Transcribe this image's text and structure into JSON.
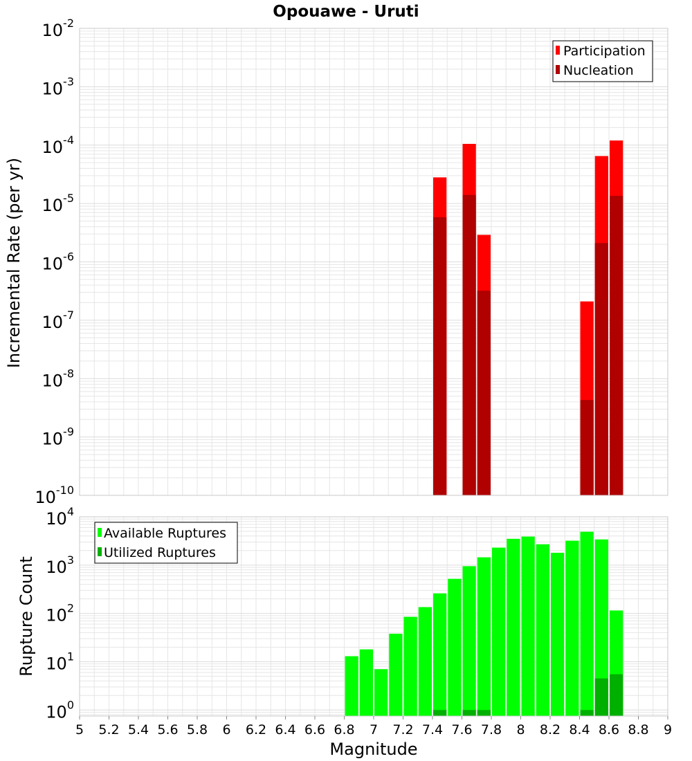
{
  "title": "Opouawe - Uruti",
  "colors": {
    "participation": "#ff0000",
    "nucleation": "#b00000",
    "available": "#00ff00",
    "utilized": "#00b000",
    "grid": "#e6e6e6",
    "frame": "#c8c8c8"
  },
  "chart_data": [
    {
      "type": "bar",
      "title": "Opouawe - Uruti",
      "xlabel": "",
      "ylabel": "Incremental Rate (per yr)",
      "yscale": "log",
      "ylim": [
        1e-10,
        0.01
      ],
      "xlim": [
        5,
        9
      ],
      "grid": true,
      "legend_position": "top-right",
      "y_ticks": [
        {
          "base": "10",
          "exp": "-10"
        },
        {
          "base": "10",
          "exp": "-9"
        },
        {
          "base": "10",
          "exp": "-8"
        },
        {
          "base": "10",
          "exp": "-7"
        },
        {
          "base": "10",
          "exp": "-6"
        },
        {
          "base": "10",
          "exp": "-5"
        },
        {
          "base": "10",
          "exp": "-4"
        },
        {
          "base": "10",
          "exp": "-3"
        },
        {
          "base": "10",
          "exp": "-2"
        }
      ],
      "series": [
        {
          "name": "Participation",
          "x": [
            7.45,
            7.65,
            7.75,
            8.45,
            8.55,
            8.65
          ],
          "values": [
            2.8e-05,
            0.000105,
            2.9e-06,
            2.1e-07,
            6.5e-05,
            0.00012
          ]
        },
        {
          "name": "Nucleation",
          "x": [
            7.45,
            7.65,
            7.75,
            8.45,
            8.55,
            8.65
          ],
          "values": [
            5.8e-06,
            1.4e-05,
            3.2e-07,
            4.3e-09,
            2.1e-06,
            1.35e-05
          ]
        }
      ]
    },
    {
      "type": "bar",
      "xlabel": "Magnitude",
      "ylabel": "Rupture Count",
      "yscale": "log",
      "ylim": [
        0.75,
        10000
      ],
      "xlim": [
        5,
        9
      ],
      "grid": true,
      "legend_position": "top-left",
      "x_ticks": [
        "5",
        "5.2",
        "5.4",
        "5.6",
        "5.8",
        "6",
        "6.2",
        "6.4",
        "6.6",
        "6.8",
        "7",
        "7.2",
        "7.4",
        "7.6",
        "7.8",
        "8",
        "8.2",
        "8.4",
        "8.6",
        "8.8",
        "9"
      ],
      "y_ticks": [
        {
          "base": "10",
          "exp": "0"
        },
        {
          "base": "10",
          "exp": "1"
        },
        {
          "base": "10",
          "exp": "2"
        },
        {
          "base": "10",
          "exp": "3"
        },
        {
          "base": "10",
          "exp": "4"
        }
      ],
      "series": [
        {
          "name": "Available Ruptures",
          "x": [
            6.85,
            6.95,
            7.05,
            7.15,
            7.25,
            7.35,
            7.45,
            7.55,
            7.65,
            7.75,
            7.85,
            7.95,
            8.05,
            8.15,
            8.25,
            8.35,
            8.45,
            8.55,
            8.65
          ],
          "values": [
            13,
            18,
            7,
            38,
            85,
            135,
            260,
            520,
            950,
            1450,
            2300,
            3500,
            3900,
            2700,
            1800,
            3200,
            4900,
            3400,
            115
          ]
        },
        {
          "name": "Utilized Ruptures",
          "x": [
            7.45,
            7.65,
            7.75,
            8.45,
            8.55,
            8.65
          ],
          "values": [
            1,
            1,
            1,
            1,
            4.5,
            5.5
          ]
        }
      ]
    }
  ]
}
